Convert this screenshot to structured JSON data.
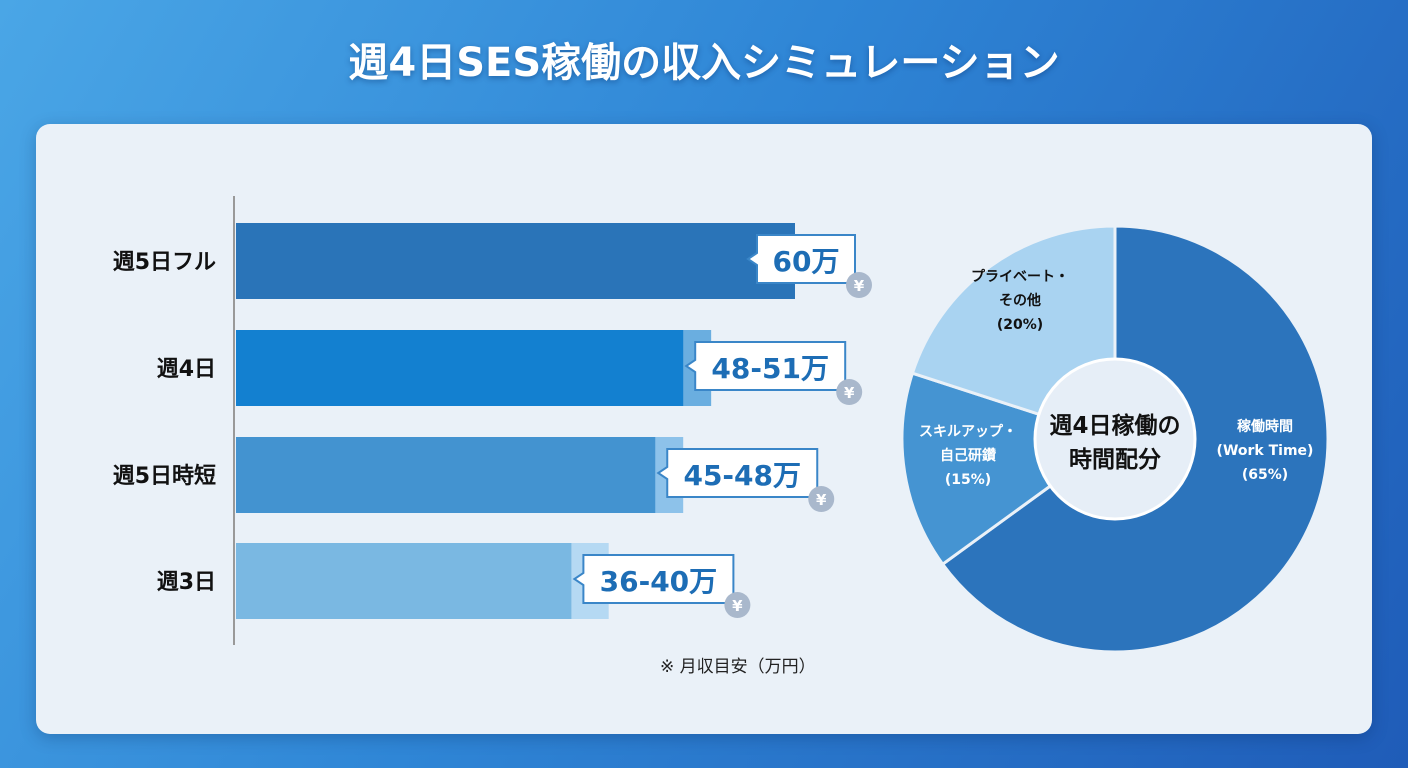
{
  "title": "週4日SES稼働の収入シミュレーション",
  "chart_data": [
    {
      "type": "bar",
      "orientation": "horizontal",
      "categories": [
        "週5日フル",
        "週4日",
        "週5日時短",
        "週3日"
      ],
      "values_low": [
        60,
        48,
        45,
        36
      ],
      "values_high": [
        60,
        51,
        48,
        40
      ],
      "data_labels": [
        "60万",
        "48-51万",
        "45-48万",
        "36-40万"
      ],
      "unit_icon": "yen-coin-icon",
      "colors": [
        "#2a74b8",
        "#1380d0",
        "#4393d0",
        "#7ab8e2"
      ],
      "range_colors": [
        "#2a74b8",
        "#6aaee0",
        "#8dc2ea",
        "#b5d9f3"
      ],
      "note": "※ 月収目安（万円）",
      "grid": false
    },
    {
      "type": "pie",
      "donut": true,
      "center_label": [
        "週4日稼働の",
        "時間配分"
      ],
      "slices": [
        {
          "label": [
            "稼働時間",
            "(Work Time)",
            "(65%)"
          ],
          "value": 65,
          "color": "#2c74bc",
          "text_color": "#ffffff"
        },
        {
          "label": [
            "スキルアップ・",
            "自己研鑽",
            "(15%)"
          ],
          "value": 15,
          "color": "#4594d2",
          "text_color": "#ffffff"
        },
        {
          "label": [
            "プライベート・",
            "その他",
            "(20%)"
          ],
          "value": 20,
          "color": "#a9d3f1",
          "text_color": "#111111"
        }
      ]
    }
  ]
}
